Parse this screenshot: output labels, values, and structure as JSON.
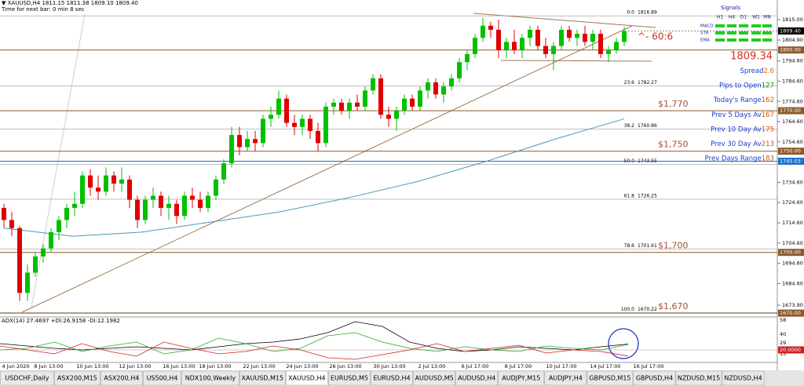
{
  "header": {
    "symbol": "▼ XAUUSD,H4  1811.15 1811.38 1809.10 1809.40",
    "timer": "Time for next bar: 0 min 8 sec"
  },
  "price_range": [
    1668.1,
    1821.6
  ],
  "price_ticks": [
    {
      "value": 1815,
      "label": "1815.00"
    },
    {
      "value": 1804.9,
      "label": "1804.90"
    },
    {
      "value": 1794.6,
      "label": "1794.60"
    },
    {
      "value": 1784.6,
      "label": "1784.60"
    },
    {
      "value": 1774.6,
      "label": "1774.60"
    },
    {
      "value": 1764.6,
      "label": "1764.60"
    },
    {
      "value": 1754.6,
      "label": "1754.60"
    },
    {
      "value": 1734.6,
      "label": "1734.60"
    },
    {
      "value": 1724.6,
      "label": "1724.60"
    },
    {
      "value": 1714.6,
      "label": "1714.60"
    },
    {
      "value": 1704.6,
      "label": "1704.60"
    },
    {
      "value": 1694.6,
      "label": "1694.60"
    },
    {
      "value": 1684.6,
      "label": "1684.60"
    },
    {
      "value": 1673.9,
      "label": "1673.90"
    }
  ],
  "current_price": {
    "value": 1809.4,
    "label": "1809.40"
  },
  "levels": [
    {
      "value": 1800,
      "label": "1800.00",
      "color": "#8b5a2b"
    },
    {
      "value": 1770,
      "label": "1770.00",
      "color": "#8b5a2b",
      "note": "$1,770"
    },
    {
      "value": 1750,
      "label": "1750.00",
      "color": "#8b5a2b",
      "note": "$1,750"
    },
    {
      "value": 1745.03,
      "label": "1745.03",
      "color": "#1e6fd0"
    },
    {
      "value": 1700,
      "label": "1700.00",
      "color": "#8b5a2b",
      "note": "$1,700"
    },
    {
      "value": 1670,
      "label": "1670.00",
      "color": "#8b5a2b",
      "note": "$1,670"
    }
  ],
  "fib": [
    {
      "ratio": "0.0",
      "price": 1816.89
    },
    {
      "ratio": "23.6",
      "price": 1782.27
    },
    {
      "ratio": "38.2",
      "price": 1760.86
    },
    {
      "ratio": "50.0",
      "price": 1743.55
    },
    {
      "ratio": "61.8",
      "price": 1726.25
    },
    {
      "ratio": "78.6",
      "price": 1701.61
    },
    {
      "ratio": "100.0",
      "price": 1670.22
    }
  ],
  "candles": [
    [
      1722,
      1724,
      1712,
      1716
    ],
    [
      1716,
      1720,
      1708,
      1712
    ],
    [
      1712,
      1713,
      1676,
      1680
    ],
    [
      1680,
      1694,
      1676,
      1690
    ],
    [
      1690,
      1700,
      1688,
      1698
    ],
    [
      1698,
      1704,
      1695,
      1702
    ],
    [
      1702,
      1712,
      1700,
      1710
    ],
    [
      1710,
      1718,
      1706,
      1716
    ],
    [
      1716,
      1724,
      1712,
      1722
    ],
    [
      1722,
      1730,
      1718,
      1724
    ],
    [
      1724,
      1740,
      1722,
      1738
    ],
    [
      1738,
      1741,
      1728,
      1732
    ],
    [
      1732,
      1738,
      1726,
      1730
    ],
    [
      1730,
      1742,
      1728,
      1738
    ],
    [
      1738,
      1740,
      1730,
      1734
    ],
    [
      1734,
      1742,
      1730,
      1736
    ],
    [
      1736,
      1738,
      1722,
      1726
    ],
    [
      1726,
      1728,
      1712,
      1716
    ],
    [
      1716,
      1728,
      1714,
      1726
    ],
    [
      1726,
      1732,
      1722,
      1728
    ],
    [
      1728,
      1730,
      1718,
      1722
    ],
    [
      1722,
      1728,
      1716,
      1724
    ],
    [
      1724,
      1726,
      1714,
      1718
    ],
    [
      1718,
      1730,
      1716,
      1728
    ],
    [
      1728,
      1732,
      1722,
      1726
    ],
    [
      1726,
      1730,
      1720,
      1722
    ],
    [
      1722,
      1730,
      1720,
      1728
    ],
    [
      1728,
      1738,
      1726,
      1736
    ],
    [
      1736,
      1746,
      1734,
      1744
    ],
    [
      1744,
      1762,
      1742,
      1758
    ],
    [
      1758,
      1762,
      1748,
      1752
    ],
    [
      1752,
      1760,
      1750,
      1756
    ],
    [
      1756,
      1760,
      1750,
      1754
    ],
    [
      1754,
      1768,
      1752,
      1766
    ],
    [
      1766,
      1772,
      1762,
      1768
    ],
    [
      1768,
      1780,
      1766,
      1776
    ],
    [
      1776,
      1778,
      1762,
      1764
    ],
    [
      1764,
      1768,
      1758,
      1762
    ],
    [
      1762,
      1768,
      1758,
      1766
    ],
    [
      1766,
      1768,
      1756,
      1760
    ],
    [
      1760,
      1764,
      1750,
      1754
    ],
    [
      1754,
      1774,
      1752,
      1772
    ],
    [
      1772,
      1776,
      1768,
      1774
    ],
    [
      1774,
      1776,
      1768,
      1770
    ],
    [
      1770,
      1776,
      1766,
      1774
    ],
    [
      1774,
      1778,
      1770,
      1772
    ],
    [
      1772,
      1782,
      1770,
      1780
    ],
    [
      1780,
      1788,
      1778,
      1786
    ],
    [
      1786,
      1788,
      1766,
      1768
    ],
    [
      1768,
      1772,
      1762,
      1766
    ],
    [
      1766,
      1772,
      1760,
      1770
    ],
    [
      1770,
      1778,
      1768,
      1776
    ],
    [
      1776,
      1778,
      1770,
      1772
    ],
    [
      1772,
      1782,
      1770,
      1780
    ],
    [
      1780,
      1786,
      1776,
      1784
    ],
    [
      1784,
      1786,
      1776,
      1778
    ],
    [
      1778,
      1784,
      1774,
      1782
    ],
    [
      1782,
      1788,
      1780,
      1786
    ],
    [
      1786,
      1796,
      1784,
      1794
    ],
    [
      1794,
      1800,
      1790,
      1798
    ],
    [
      1798,
      1808,
      1796,
      1806
    ],
    [
      1806,
      1816,
      1804,
      1812
    ],
    [
      1812,
      1814,
      1806,
      1810
    ],
    [
      1810,
      1815,
      1796,
      1800
    ],
    [
      1800,
      1806,
      1796,
      1804
    ],
    [
      1804,
      1810,
      1798,
      1800
    ],
    [
      1800,
      1808,
      1796,
      1806
    ],
    [
      1806,
      1812,
      1802,
      1810
    ],
    [
      1810,
      1812,
      1800,
      1802
    ],
    [
      1802,
      1806,
      1796,
      1798
    ],
    [
      1798,
      1804,
      1790,
      1802
    ],
    [
      1802,
      1812,
      1800,
      1810
    ],
    [
      1810,
      1812,
      1804,
      1806
    ],
    [
      1806,
      1810,
      1802,
      1808
    ],
    [
      1808,
      1812,
      1802,
      1804
    ],
    [
      1804,
      1810,
      1800,
      1808
    ],
    [
      1808,
      1810,
      1796,
      1798
    ],
    [
      1798,
      1802,
      1794,
      1800
    ],
    [
      1800,
      1806,
      1798,
      1804
    ],
    [
      1804,
      1811.38,
      1802,
      1809.4
    ]
  ],
  "up_color": "#00c000",
  "down_color": "#e00000",
  "ma": [
    1712,
    1708,
    1710,
    1715,
    1720,
    1727,
    1735,
    1745,
    1756,
    1766
  ],
  "ma_color": "#4a9bb5",
  "annotation": "^- 60:6",
  "big_price": "1809.34",
  "signals": {
    "title": "Signals",
    "columns": [
      "H1",
      "H4",
      "D1",
      "W1",
      "MN"
    ],
    "rows": [
      "MACD",
      "STR",
      "EMA"
    ],
    "color": "#22cc22"
  },
  "info": [
    {
      "label": "Spread",
      "value": "2.6",
      "color": "#e07000"
    },
    {
      "label": "Pips to Open",
      "value": "127",
      "color": "#00a000"
    },
    {
      "label": "Today's Range",
      "value": "162",
      "color": "#e05000"
    },
    {
      "label": "Prev 5 Days Av",
      "value": "167",
      "color": "#e05000"
    },
    {
      "label": "Prev 10 Day Av",
      "value": "175",
      "color": "#e05000"
    },
    {
      "label": "Prev 30 Day Av",
      "value": "213",
      "color": "#e05000"
    },
    {
      "label": "Prev Days Range",
      "value": "183",
      "color": "#e05000"
    }
  ],
  "time_labels": [
    "4 Jun 2020",
    "8 Jun 13:00",
    "10 Jun 13:00",
    "12 Jun 13:00",
    "16 Jun 13:00",
    "18 Jun 13:00",
    "22 Jun 13:00",
    "24 Jun 13:00",
    "26 Jun 13:00",
    "30 Jun 13:00",
    "2 Jul 13:00",
    "6 Jul 17:00",
    "8 Jul 17:00",
    "10 Jul 17:00",
    "14 Jul 17:00",
    "16 Jul 17:00"
  ],
  "adx": {
    "title": "ADX(14) 27.4697 +DI:26.9158 -DI:12.1982",
    "ylim": [
      4,
      62
    ],
    "ticks": [
      58,
      40,
      29,
      15
    ],
    "threshold": {
      "value": 20,
      "label": "20.0000"
    },
    "adx": [
      28,
      25,
      22,
      20,
      22,
      24,
      22,
      20,
      24,
      28,
      30,
      34,
      42,
      56,
      50,
      30,
      22,
      18,
      20,
      24,
      22,
      20,
      24,
      27.47
    ],
    "plus_di": [
      20,
      22,
      30,
      18,
      25,
      30,
      15,
      20,
      35,
      28,
      18,
      22,
      38,
      42,
      30,
      22,
      18,
      24,
      20,
      18,
      25,
      22,
      20,
      26.92
    ],
    "minus_di": [
      25,
      20,
      15,
      28,
      18,
      12,
      30,
      22,
      15,
      18,
      25,
      20,
      10,
      8,
      14,
      20,
      28,
      18,
      22,
      26,
      16,
      20,
      18,
      12.2
    ]
  },
  "tabs": [
    "USDCHF,Daily",
    "ASX200,M15",
    "ASX200,H4",
    "US500,H4",
    "NDX100,Weekly",
    "XAUUSD,M15",
    "XAUUSD,H4",
    "EURUSD,M5",
    "EURUSD,H4",
    "AUDUSD,M5",
    "AUDUSD,H4",
    "AUDJPY,M15",
    "AUDJPY,H4",
    "GBPUSD,M15",
    "GBPUSD,H4",
    "NZDUSD,M15",
    "NZDUSD,H4"
  ],
  "active_tab": "XAUUSD,H4"
}
